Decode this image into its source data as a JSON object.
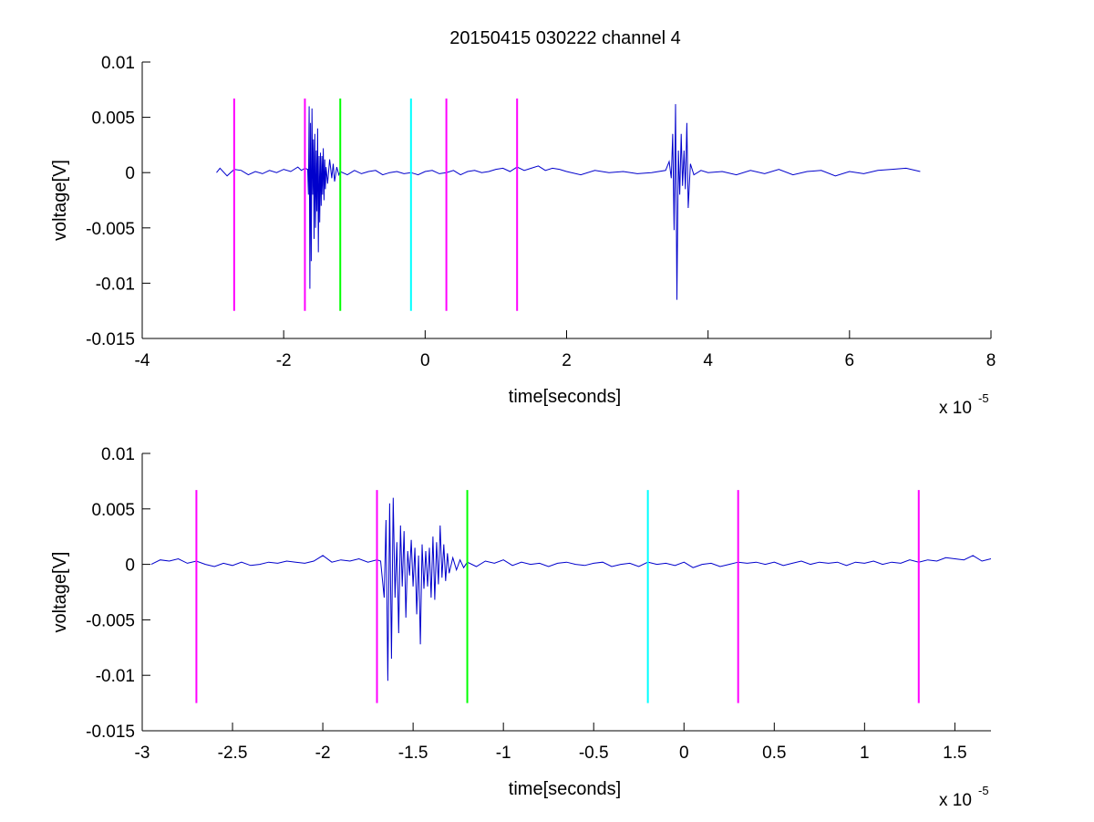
{
  "figure": {
    "title": "20150415 030222 channel 4"
  },
  "chart_data": [
    {
      "type": "line",
      "title": "20150415 030222 channel 4",
      "xlabel": "time[seconds]",
      "ylabel": "voltage[V]",
      "x_multiplier_base": "x 10",
      "x_multiplier_exp": "-5",
      "xlim": [
        -4,
        8
      ],
      "ylim": [
        -0.015,
        0.01
      ],
      "x_ticks": [
        -4,
        -2,
        0,
        2,
        4,
        6,
        8
      ],
      "x_tick_labels": [
        "-4",
        "-2",
        "0",
        "2",
        "4",
        "6",
        "8"
      ],
      "y_ticks": [
        0.01,
        0.005,
        0,
        -0.005,
        -0.01,
        -0.015
      ],
      "y_tick_labels": [
        "0.01",
        "0.005",
        "0",
        "-0.005",
        "-0.01",
        "-0.015"
      ],
      "grid": false,
      "series": [
        {
          "color": "#0000cc",
          "x": [
            -2.95,
            -2.9,
            -2.8,
            -2.7,
            -2.6,
            -2.5,
            -2.4,
            -2.3,
            -2.2,
            -2.1,
            -2.0,
            -1.9,
            -1.8,
            -1.75,
            -1.7,
            -1.66,
            -1.65,
            -1.64,
            -1.63,
            -1.62,
            -1.61,
            -1.6,
            -1.59,
            -1.58,
            -1.57,
            -1.56,
            -1.55,
            -1.54,
            -1.53,
            -1.52,
            -1.51,
            -1.5,
            -1.49,
            -1.48,
            -1.47,
            -1.46,
            -1.45,
            -1.44,
            -1.43,
            -1.42,
            -1.41,
            -1.4,
            -1.38,
            -1.35,
            -1.32,
            -1.3,
            -1.28,
            -1.25,
            -1.22,
            -1.2,
            -1.1,
            -1.0,
            -0.9,
            -0.8,
            -0.7,
            -0.6,
            -0.5,
            -0.4,
            -0.3,
            -0.2,
            -0.1,
            0.0,
            0.1,
            0.2,
            0.3,
            0.4,
            0.5,
            0.6,
            0.7,
            0.8,
            0.9,
            1.0,
            1.1,
            1.2,
            1.3,
            1.4,
            1.5,
            1.6,
            1.7,
            1.8,
            1.9,
            2.0,
            2.2,
            2.4,
            2.6,
            2.8,
            3.0,
            3.2,
            3.4,
            3.45,
            3.48,
            3.5,
            3.52,
            3.54,
            3.56,
            3.58,
            3.6,
            3.62,
            3.64,
            3.66,
            3.68,
            3.7,
            3.72,
            3.75,
            3.8,
            3.9,
            4.0,
            4.2,
            4.4,
            4.6,
            4.8,
            5.0,
            5.2,
            5.4,
            5.6,
            5.8,
            6.0,
            6.2,
            6.4,
            6.6,
            6.8,
            7.0
          ],
          "y": [
            0.0,
            0.0004,
            -0.0003,
            0.0003,
            0.0002,
            -0.0002,
            0.0001,
            -0.0001,
            0.0002,
            0.0,
            0.0003,
            0.0001,
            0.0005,
            0.0002,
            0.0004,
            0.0003,
            -0.002,
            0.006,
            -0.0105,
            0.0045,
            -0.008,
            0.0058,
            -0.002,
            0.003,
            -0.006,
            0.0035,
            -0.005,
            0.002,
            -0.0035,
            0.004,
            -0.0072,
            0.0015,
            -0.0045,
            0.0018,
            -0.003,
            0.0015,
            -0.002,
            0.0022,
            -0.0025,
            0.0012,
            -0.0015,
            0.0005,
            -0.001,
            0.0012,
            -0.0005,
            0.0008,
            -0.0008,
            0.0005,
            -0.0002,
            0.0001,
            -0.0002,
            0.0002,
            -0.0001,
            0.0001,
            0.0002,
            -0.0002,
            0.0,
            0.0001,
            -0.0001,
            0.0,
            -0.0002,
            0.0001,
            0.0002,
            -0.0001,
            0.0,
            0.0002,
            -0.0002,
            0.0001,
            0.0002,
            0.0,
            0.0001,
            0.0003,
            0.0004,
            0.0001,
            0.0005,
            0.0002,
            0.0004,
            0.0006,
            0.0002,
            0.0004,
            0.0003,
            0.0001,
            -0.0002,
            0.0002,
            0.0,
            0.0001,
            -0.0001,
            0.0,
            0.0002,
            0.001,
            -0.0005,
            0.0035,
            -0.0052,
            0.0062,
            -0.0115,
            0.002,
            -0.002,
            0.0035,
            -0.0012,
            0.002,
            -0.0015,
            0.0045,
            -0.0032,
            0.0008,
            -0.0002,
            0.0002,
            0.0,
            0.0001,
            -0.0002,
            0.0002,
            -0.0001,
            0.0003,
            -0.0002,
            0.0001,
            0.0002,
            -0.0003,
            0.0001,
            -0.0001,
            0.0002,
            0.0003,
            0.0004,
            0.0001
          ]
        }
      ],
      "markers": [
        {
          "x": -2.7,
          "color": "#ff00ff"
        },
        {
          "x": -1.7,
          "color": "#ff00ff"
        },
        {
          "x": -1.2,
          "color": "#00ff00"
        },
        {
          "x": -0.2,
          "color": "#00ffff"
        },
        {
          "x": 0.3,
          "color": "#ff00ff"
        },
        {
          "x": 1.3,
          "color": "#ff00ff"
        }
      ],
      "marker_y_range": [
        -0.0125,
        0.0067
      ]
    },
    {
      "type": "line",
      "title": "",
      "xlabel": "time[seconds]",
      "ylabel": "voltage[V]",
      "x_multiplier_base": "x 10",
      "x_multiplier_exp": "-5",
      "xlim": [
        -3.0,
        1.7
      ],
      "ylim": [
        -0.015,
        0.01
      ],
      "x_ticks": [
        -3,
        -2.5,
        -2,
        -1.5,
        -1,
        -0.5,
        0,
        0.5,
        1,
        1.5
      ],
      "x_tick_labels": [
        "-3",
        "-2.5",
        "-2",
        "-1.5",
        "-1",
        "-0.5",
        "0",
        "0.5",
        "1",
        "1.5"
      ],
      "y_ticks": [
        0.01,
        0.005,
        0,
        -0.005,
        -0.01,
        -0.015
      ],
      "y_tick_labels": [
        "0.01",
        "0.005",
        "0",
        "-0.005",
        "-0.01",
        "-0.015"
      ],
      "grid": false,
      "series": [
        {
          "color": "#0000cc",
          "x": [
            -2.95,
            -2.9,
            -2.85,
            -2.8,
            -2.75,
            -2.7,
            -2.65,
            -2.6,
            -2.55,
            -2.5,
            -2.45,
            -2.4,
            -2.35,
            -2.3,
            -2.25,
            -2.2,
            -2.15,
            -2.1,
            -2.05,
            -2.0,
            -1.95,
            -1.9,
            -1.85,
            -1.8,
            -1.75,
            -1.7,
            -1.68,
            -1.66,
            -1.65,
            -1.64,
            -1.63,
            -1.62,
            -1.61,
            -1.6,
            -1.59,
            -1.58,
            -1.57,
            -1.56,
            -1.55,
            -1.54,
            -1.53,
            -1.52,
            -1.51,
            -1.5,
            -1.49,
            -1.48,
            -1.47,
            -1.46,
            -1.45,
            -1.44,
            -1.43,
            -1.42,
            -1.41,
            -1.4,
            -1.39,
            -1.38,
            -1.37,
            -1.36,
            -1.35,
            -1.34,
            -1.33,
            -1.32,
            -1.31,
            -1.3,
            -1.28,
            -1.26,
            -1.24,
            -1.22,
            -1.2,
            -1.15,
            -1.1,
            -1.05,
            -1.0,
            -0.95,
            -0.9,
            -0.85,
            -0.8,
            -0.75,
            -0.7,
            -0.65,
            -0.6,
            -0.55,
            -0.5,
            -0.45,
            -0.4,
            -0.35,
            -0.3,
            -0.25,
            -0.2,
            -0.15,
            -0.1,
            -0.05,
            0.0,
            0.05,
            0.1,
            0.15,
            0.2,
            0.25,
            0.3,
            0.35,
            0.4,
            0.45,
            0.5,
            0.55,
            0.6,
            0.65,
            0.7,
            0.75,
            0.8,
            0.85,
            0.9,
            0.95,
            1.0,
            1.05,
            1.1,
            1.15,
            1.2,
            1.25,
            1.3,
            1.35,
            1.4,
            1.45,
            1.5,
            1.55,
            1.6,
            1.65,
            1.7
          ],
          "y": [
            0.0,
            0.0004,
            0.0003,
            0.0005,
            0.0001,
            0.0003,
            0.0,
            -0.0002,
            0.0001,
            -0.0001,
            0.0002,
            -0.0001,
            0.0,
            0.0002,
            0.0001,
            0.0003,
            0.0002,
            0.0001,
            0.0003,
            0.0008,
            0.0002,
            0.0004,
            0.0003,
            0.0005,
            0.0002,
            0.0004,
            0.0003,
            -0.003,
            0.004,
            -0.0105,
            0.0055,
            -0.0085,
            0.006,
            -0.003,
            0.002,
            -0.0062,
            0.0035,
            -0.002,
            0.003,
            -0.0048,
            0.0012,
            -0.001,
            0.0022,
            -0.002,
            0.0015,
            -0.0045,
            0.0008,
            -0.0072,
            0.0018,
            -0.0022,
            0.0012,
            -0.002,
            0.0015,
            -0.003,
            0.0025,
            -0.0032,
            0.002,
            -0.0018,
            0.0035,
            -0.0012,
            0.0018,
            -0.0015,
            0.001,
            -0.0008,
            0.0006,
            -0.0005,
            0.0004,
            -0.0003,
            0.0002,
            -0.0002,
            0.0003,
            0.0001,
            0.0004,
            -0.0001,
            0.0002,
            0.0,
            0.0001,
            -0.0002,
            0.0001,
            0.0002,
            0.0,
            -0.0001,
            0.0001,
            0.0002,
            -0.0002,
            0.0,
            0.0001,
            -0.0002,
            0.0002,
            0.0,
            0.0001,
            -0.0001,
            0.0002,
            -0.0003,
            0.0,
            0.0001,
            -0.0002,
            0.0,
            0.0002,
            0.0001,
            0.0002,
            0.0,
            0.0002,
            -0.0001,
            0.0001,
            0.0003,
            0.0,
            0.0002,
            0.0001,
            0.0002,
            -0.0001,
            0.0002,
            0.0001,
            0.0003,
            0.0,
            0.0002,
            0.0001,
            0.0004,
            0.0002,
            0.0004,
            0.0003,
            0.0006,
            0.0005,
            0.0004,
            0.0008,
            0.0003,
            0.0005
          ]
        }
      ],
      "markers": [
        {
          "x": -2.7,
          "color": "#ff00ff"
        },
        {
          "x": -1.7,
          "color": "#ff00ff"
        },
        {
          "x": -1.2,
          "color": "#00ff00"
        },
        {
          "x": -0.2,
          "color": "#00ffff"
        },
        {
          "x": 0.3,
          "color": "#ff00ff"
        },
        {
          "x": 1.3,
          "color": "#ff00ff"
        }
      ],
      "marker_y_range": [
        -0.0125,
        0.0067
      ]
    }
  ]
}
